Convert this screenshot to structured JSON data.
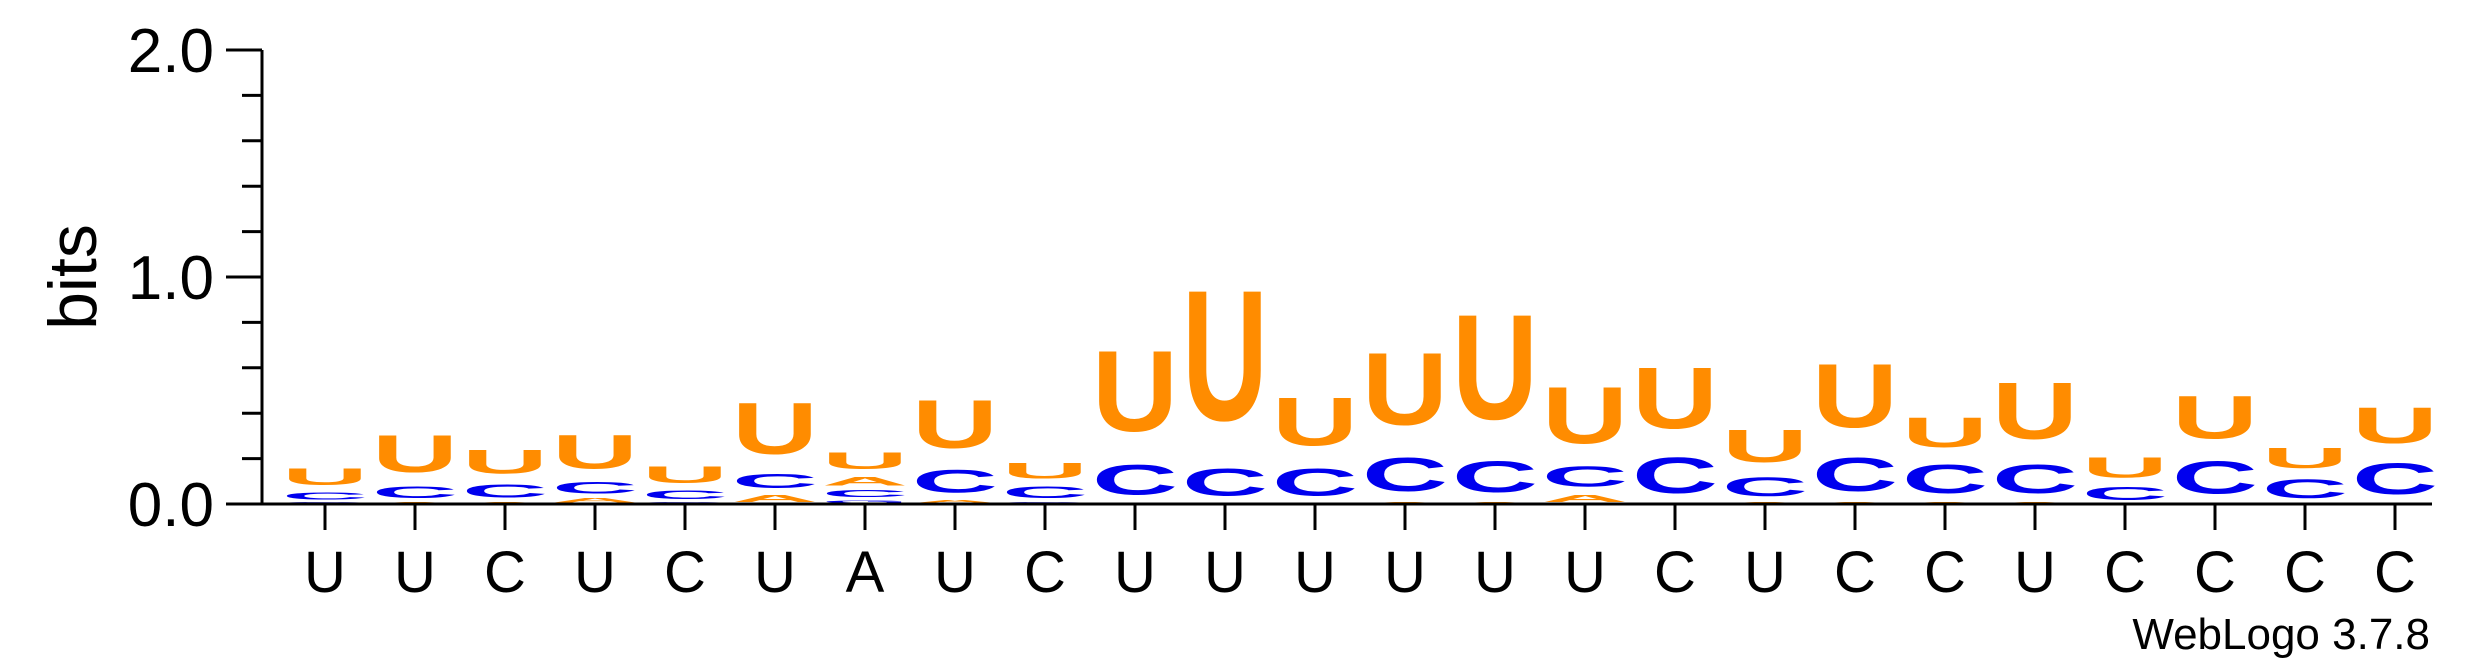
{
  "chart_data": {
    "type": "sequence-logo",
    "title": "",
    "ylabel": "bits",
    "ylim": [
      0,
      2
    ],
    "y_ticks": [
      "0.0",
      "1.0",
      "2.0"
    ],
    "colors": {
      "U": "#ff8c00",
      "C": "#0000ee",
      "A": "#ff8c00",
      "G": "#0000ee"
    },
    "credit": "WebLogo 3.7.8",
    "positions": [
      {
        "label": "U",
        "stack": [
          {
            "base": "G",
            "bits": 0.01
          },
          {
            "base": "C",
            "bits": 0.05
          },
          {
            "base": "U",
            "bits": 0.12
          }
        ]
      },
      {
        "label": "U",
        "stack": [
          {
            "base": "A",
            "bits": 0.01
          },
          {
            "base": "C",
            "bits": 0.08
          },
          {
            "base": "U",
            "bits": 0.26
          }
        ]
      },
      {
        "label": "C",
        "stack": [
          {
            "base": "A",
            "bits": 0.01
          },
          {
            "base": "C",
            "bits": 0.09
          },
          {
            "base": "U",
            "bits": 0.17
          }
        ]
      },
      {
        "label": "U",
        "stack": [
          {
            "base": "A",
            "bits": 0.03
          },
          {
            "base": "C",
            "bits": 0.08
          },
          {
            "base": "U",
            "bits": 0.24
          }
        ]
      },
      {
        "label": "C",
        "stack": [
          {
            "base": "G",
            "bits": 0.01
          },
          {
            "base": "C",
            "bits": 0.06
          },
          {
            "base": "U",
            "bits": 0.12
          }
        ]
      },
      {
        "label": "U",
        "stack": [
          {
            "base": "A",
            "bits": 0.05
          },
          {
            "base": "C",
            "bits": 0.1
          },
          {
            "base": "U",
            "bits": 0.36
          }
        ]
      },
      {
        "label": "A",
        "stack": [
          {
            "base": "G",
            "bits": 0.02
          },
          {
            "base": "C",
            "bits": 0.05
          },
          {
            "base": "A",
            "bits": 0.06
          },
          {
            "base": "U",
            "bits": 0.12
          }
        ]
      },
      {
        "label": "U",
        "stack": [
          {
            "base": "A",
            "bits": 0.02
          },
          {
            "base": "C",
            "bits": 0.16
          },
          {
            "base": "U",
            "bits": 0.34
          }
        ]
      },
      {
        "label": "C",
        "stack": [
          {
            "base": "G",
            "bits": 0.01
          },
          {
            "base": "C",
            "bits": 0.08
          },
          {
            "base": "U",
            "bits": 0.11
          }
        ]
      },
      {
        "label": "U",
        "stack": [
          {
            "base": "C",
            "bits": 0.21
          },
          {
            "base": "U",
            "bits": 0.57
          }
        ]
      },
      {
        "label": "U",
        "stack": [
          {
            "base": "C",
            "bits": 0.19
          },
          {
            "base": "U",
            "bits": 0.92
          }
        ]
      },
      {
        "label": "U",
        "stack": [
          {
            "base": "C",
            "bits": 0.19
          },
          {
            "base": "U",
            "bits": 0.34
          }
        ]
      },
      {
        "label": "U",
        "stack": [
          {
            "base": "A",
            "bits": 0.01
          },
          {
            "base": "C",
            "bits": 0.24
          },
          {
            "base": "U",
            "bits": 0.51
          }
        ]
      },
      {
        "label": "U",
        "stack": [
          {
            "base": "A",
            "bits": 0.01
          },
          {
            "base": "C",
            "bits": 0.22
          },
          {
            "base": "U",
            "bits": 0.74
          }
        ]
      },
      {
        "label": "U",
        "stack": [
          {
            "base": "A",
            "bits": 0.05
          },
          {
            "base": "C",
            "bits": 0.14
          },
          {
            "base": "U",
            "bits": 0.4
          }
        ]
      },
      {
        "label": "C",
        "stack": [
          {
            "base": "C",
            "bits": 0.25
          },
          {
            "base": "U",
            "bits": 0.43
          }
        ]
      },
      {
        "label": "U",
        "stack": [
          {
            "base": "A",
            "bits": 0.01
          },
          {
            "base": "C",
            "bits": 0.13
          },
          {
            "base": "U",
            "bits": 0.23
          }
        ]
      },
      {
        "label": "C",
        "stack": [
          {
            "base": "A",
            "bits": 0.01
          },
          {
            "base": "C",
            "bits": 0.24
          },
          {
            "base": "U",
            "bits": 0.45
          }
        ]
      },
      {
        "label": "C",
        "stack": [
          {
            "base": "A",
            "bits": 0.01
          },
          {
            "base": "C",
            "bits": 0.2
          },
          {
            "base": "U",
            "bits": 0.21
          }
        ]
      },
      {
        "label": "U",
        "stack": [
          {
            "base": "A",
            "bits": 0.01
          },
          {
            "base": "C",
            "bits": 0.2
          },
          {
            "base": "U",
            "bits": 0.4
          }
        ]
      },
      {
        "label": "C",
        "stack": [
          {
            "base": "C",
            "bits": 0.09
          },
          {
            "base": "U",
            "bits": 0.14
          }
        ]
      },
      {
        "label": "C",
        "stack": [
          {
            "base": "C",
            "bits": 0.23
          },
          {
            "base": "U",
            "bits": 0.3
          }
        ]
      },
      {
        "label": "C",
        "stack": [
          {
            "base": "C",
            "bits": 0.13
          },
          {
            "base": "U",
            "bits": 0.14
          }
        ]
      },
      {
        "label": "C",
        "stack": [
          {
            "base": "C",
            "bits": 0.22
          },
          {
            "base": "U",
            "bits": 0.25
          }
        ]
      }
    ]
  }
}
